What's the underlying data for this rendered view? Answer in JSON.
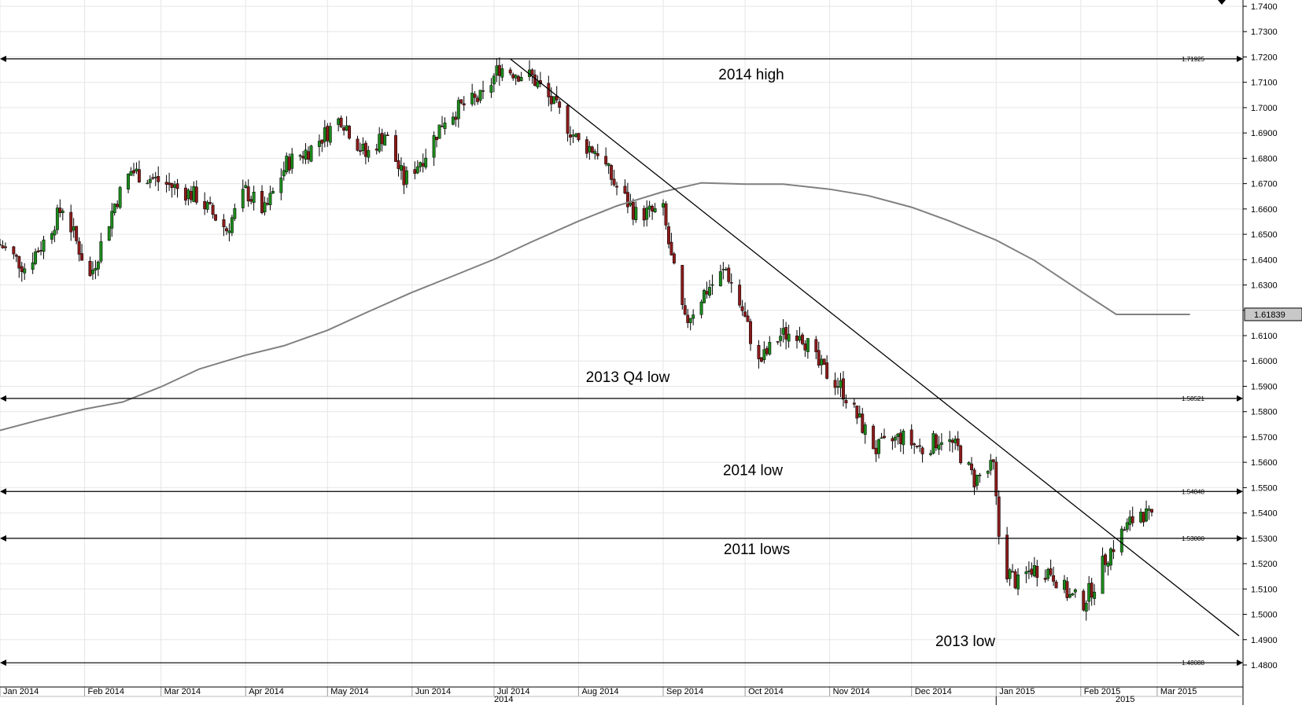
{
  "chart_data": {
    "type": "candlestick",
    "series": [
      {
        "name": "",
        "candles": []
      }
    ],
    "y_axis": {
      "ticks": [
        "1.7400",
        "1.7300",
        "1.7200",
        "1.7100",
        "1.7000",
        "1.6900",
        "1.6800",
        "1.6700",
        "1.6600",
        "1.6500",
        "1.6400",
        "1.6300",
        "1.6200",
        "1.6100",
        "1.6000",
        "1.5900",
        "1.5800",
        "1.5700",
        "1.5600",
        "1.5500",
        "1.5400",
        "1.5300",
        "1.5200",
        "1.5100",
        "1.5000",
        "1.4900",
        "1.4800"
      ],
      "range": [
        1.4725,
        1.7425
      ],
      "side": "right"
    },
    "x_axis": {
      "months": [
        "Jan 2014",
        "Feb 2014",
        "Mar 2014",
        "Apr 2014",
        "May 2014",
        "Jun 2014",
        "Jul 2014",
        "Aug 2014",
        "Sep 2014",
        "Oct 2014",
        "Nov 2014",
        "Dec 2014",
        "Jan 2015",
        "Feb 2015",
        "Mar 2015"
      ],
      "year_labels": [
        "2014",
        "2015"
      ]
    },
    "horizontal_levels": [
      {
        "value": 1.71925,
        "tag": "1.71925",
        "annotation": "2014 high"
      },
      {
        "value": 1.58521,
        "tag": "1.58521",
        "annotation": "2013 Q4 low"
      },
      {
        "value": 1.54848,
        "tag": "1.54848",
        "annotation": "2014 low"
      },
      {
        "value": 1.53,
        "tag": "1.53000",
        "annotation": "2011 lows"
      },
      {
        "value": 1.48088,
        "tag": "1.48088",
        "annotation": "2013 low"
      }
    ],
    "trendline": {
      "start": {
        "date": "2014-07-07",
        "value": 1.7192
      },
      "end": {
        "date": "2015-03-31",
        "value": 1.4915
      }
    },
    "moving_average": {
      "name": "",
      "color": "#808080",
      "points": [
        [
          "2014-01-01",
          1.5726
        ],
        [
          "2014-01-15",
          1.5766
        ],
        [
          "2014-02-01",
          1.581
        ],
        [
          "2014-02-15",
          1.5838
        ],
        [
          "2014-03-01",
          1.5898
        ],
        [
          "2014-03-15",
          1.5968
        ],
        [
          "2014-04-01",
          1.6023
        ],
        [
          "2014-04-15",
          1.606
        ],
        [
          "2014-05-01",
          1.6121
        ],
        [
          "2014-05-15",
          1.619
        ],
        [
          "2014-06-01",
          1.6271
        ],
        [
          "2014-06-15",
          1.6331
        ],
        [
          "2014-07-01",
          1.6401
        ],
        [
          "2014-07-15",
          1.6471
        ],
        [
          "2014-08-01",
          1.6552
        ],
        [
          "2014-08-15",
          1.6612
        ],
        [
          "2014-09-01",
          1.6668
        ],
        [
          "2014-09-15",
          1.6703
        ],
        [
          "2014-10-01",
          1.6698
        ],
        [
          "2014-10-15",
          1.6698
        ],
        [
          "2014-11-01",
          1.6678
        ],
        [
          "2014-11-15",
          1.6653
        ],
        [
          "2014-12-01",
          1.6607
        ],
        [
          "2014-12-15",
          1.6552
        ],
        [
          "2015-01-01",
          1.6477
        ],
        [
          "2015-01-15",
          1.6397
        ],
        [
          "2015-02-01",
          1.6275
        ],
        [
          "2015-02-14",
          1.61839
        ],
        [
          "2015-03-13",
          1.61839
        ]
      ],
      "last_value_label": "1.61839"
    },
    "colors": {
      "up": "#1c8a1c",
      "down": "#8b1a1a",
      "wick": "#000000",
      "grid": "#e6e6e6",
      "levels": "#000000",
      "moving_average": "#808080",
      "label_box": "#c8c8c8"
    },
    "grid": true
  }
}
